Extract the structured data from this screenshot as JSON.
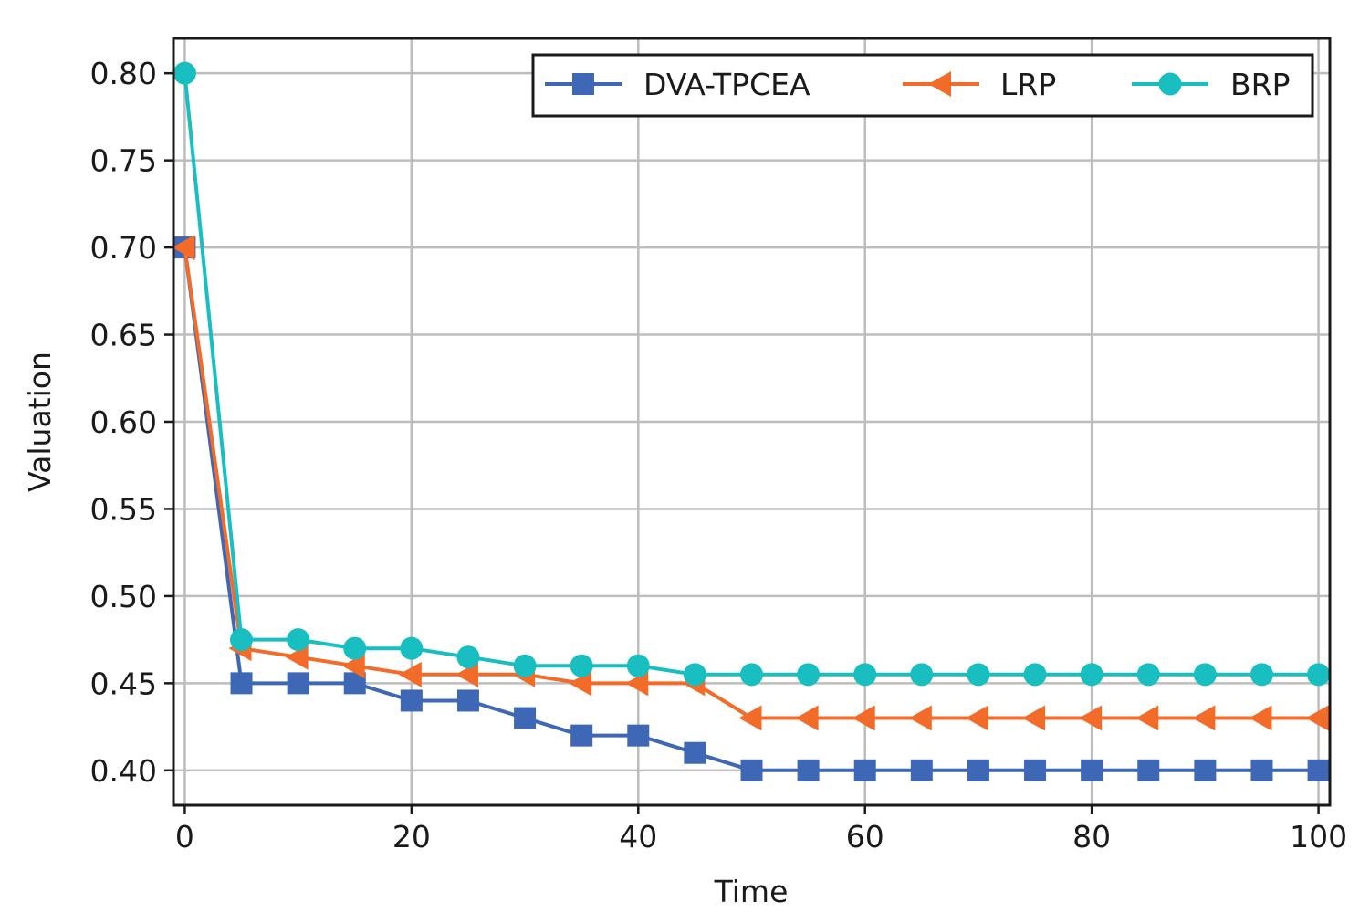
{
  "chart_data": {
    "type": "line",
    "title": "",
    "xlabel": "Time",
    "ylabel": "Valuation",
    "xlim": [
      -1,
      101
    ],
    "ylim": [
      0.38,
      0.82
    ],
    "xticks": [
      0,
      20,
      40,
      60,
      80,
      100
    ],
    "yticks": [
      0.4,
      0.45,
      0.5,
      0.55,
      0.6,
      0.65,
      0.7,
      0.75,
      0.8
    ],
    "xtick_labels": [
      "0",
      "20",
      "40",
      "60",
      "80",
      "100"
    ],
    "ytick_labels": [
      "0.40",
      "0.45",
      "0.50",
      "0.55",
      "0.60",
      "0.65",
      "0.70",
      "0.75",
      "0.80"
    ],
    "grid": true,
    "legend_position": "top-right",
    "x": [
      0,
      5,
      10,
      15,
      20,
      25,
      30,
      35,
      40,
      45,
      50,
      55,
      60,
      65,
      70,
      75,
      80,
      85,
      90,
      95,
      100
    ],
    "series": [
      {
        "name": "DVA-TPCEA",
        "color": "#3e67b5",
        "marker": "square",
        "values": [
          0.7,
          0.45,
          0.45,
          0.45,
          0.44,
          0.44,
          0.43,
          0.42,
          0.42,
          0.41,
          0.4,
          0.4,
          0.4,
          0.4,
          0.4,
          0.4,
          0.4,
          0.4,
          0.4,
          0.4,
          0.4
        ]
      },
      {
        "name": "LRP",
        "color": "#f26b29",
        "marker": "triangle-left",
        "values": [
          0.7,
          0.47,
          0.465,
          0.46,
          0.455,
          0.455,
          0.455,
          0.45,
          0.45,
          0.45,
          0.43,
          0.43,
          0.43,
          0.43,
          0.43,
          0.43,
          0.43,
          0.43,
          0.43,
          0.43,
          0.43
        ]
      },
      {
        "name": "BRP",
        "color": "#19bec0",
        "marker": "circle",
        "values": [
          0.8,
          0.475,
          0.475,
          0.47,
          0.47,
          0.465,
          0.46,
          0.46,
          0.46,
          0.455,
          0.455,
          0.455,
          0.455,
          0.455,
          0.455,
          0.455,
          0.455,
          0.455,
          0.455,
          0.455,
          0.455
        ]
      }
    ]
  }
}
